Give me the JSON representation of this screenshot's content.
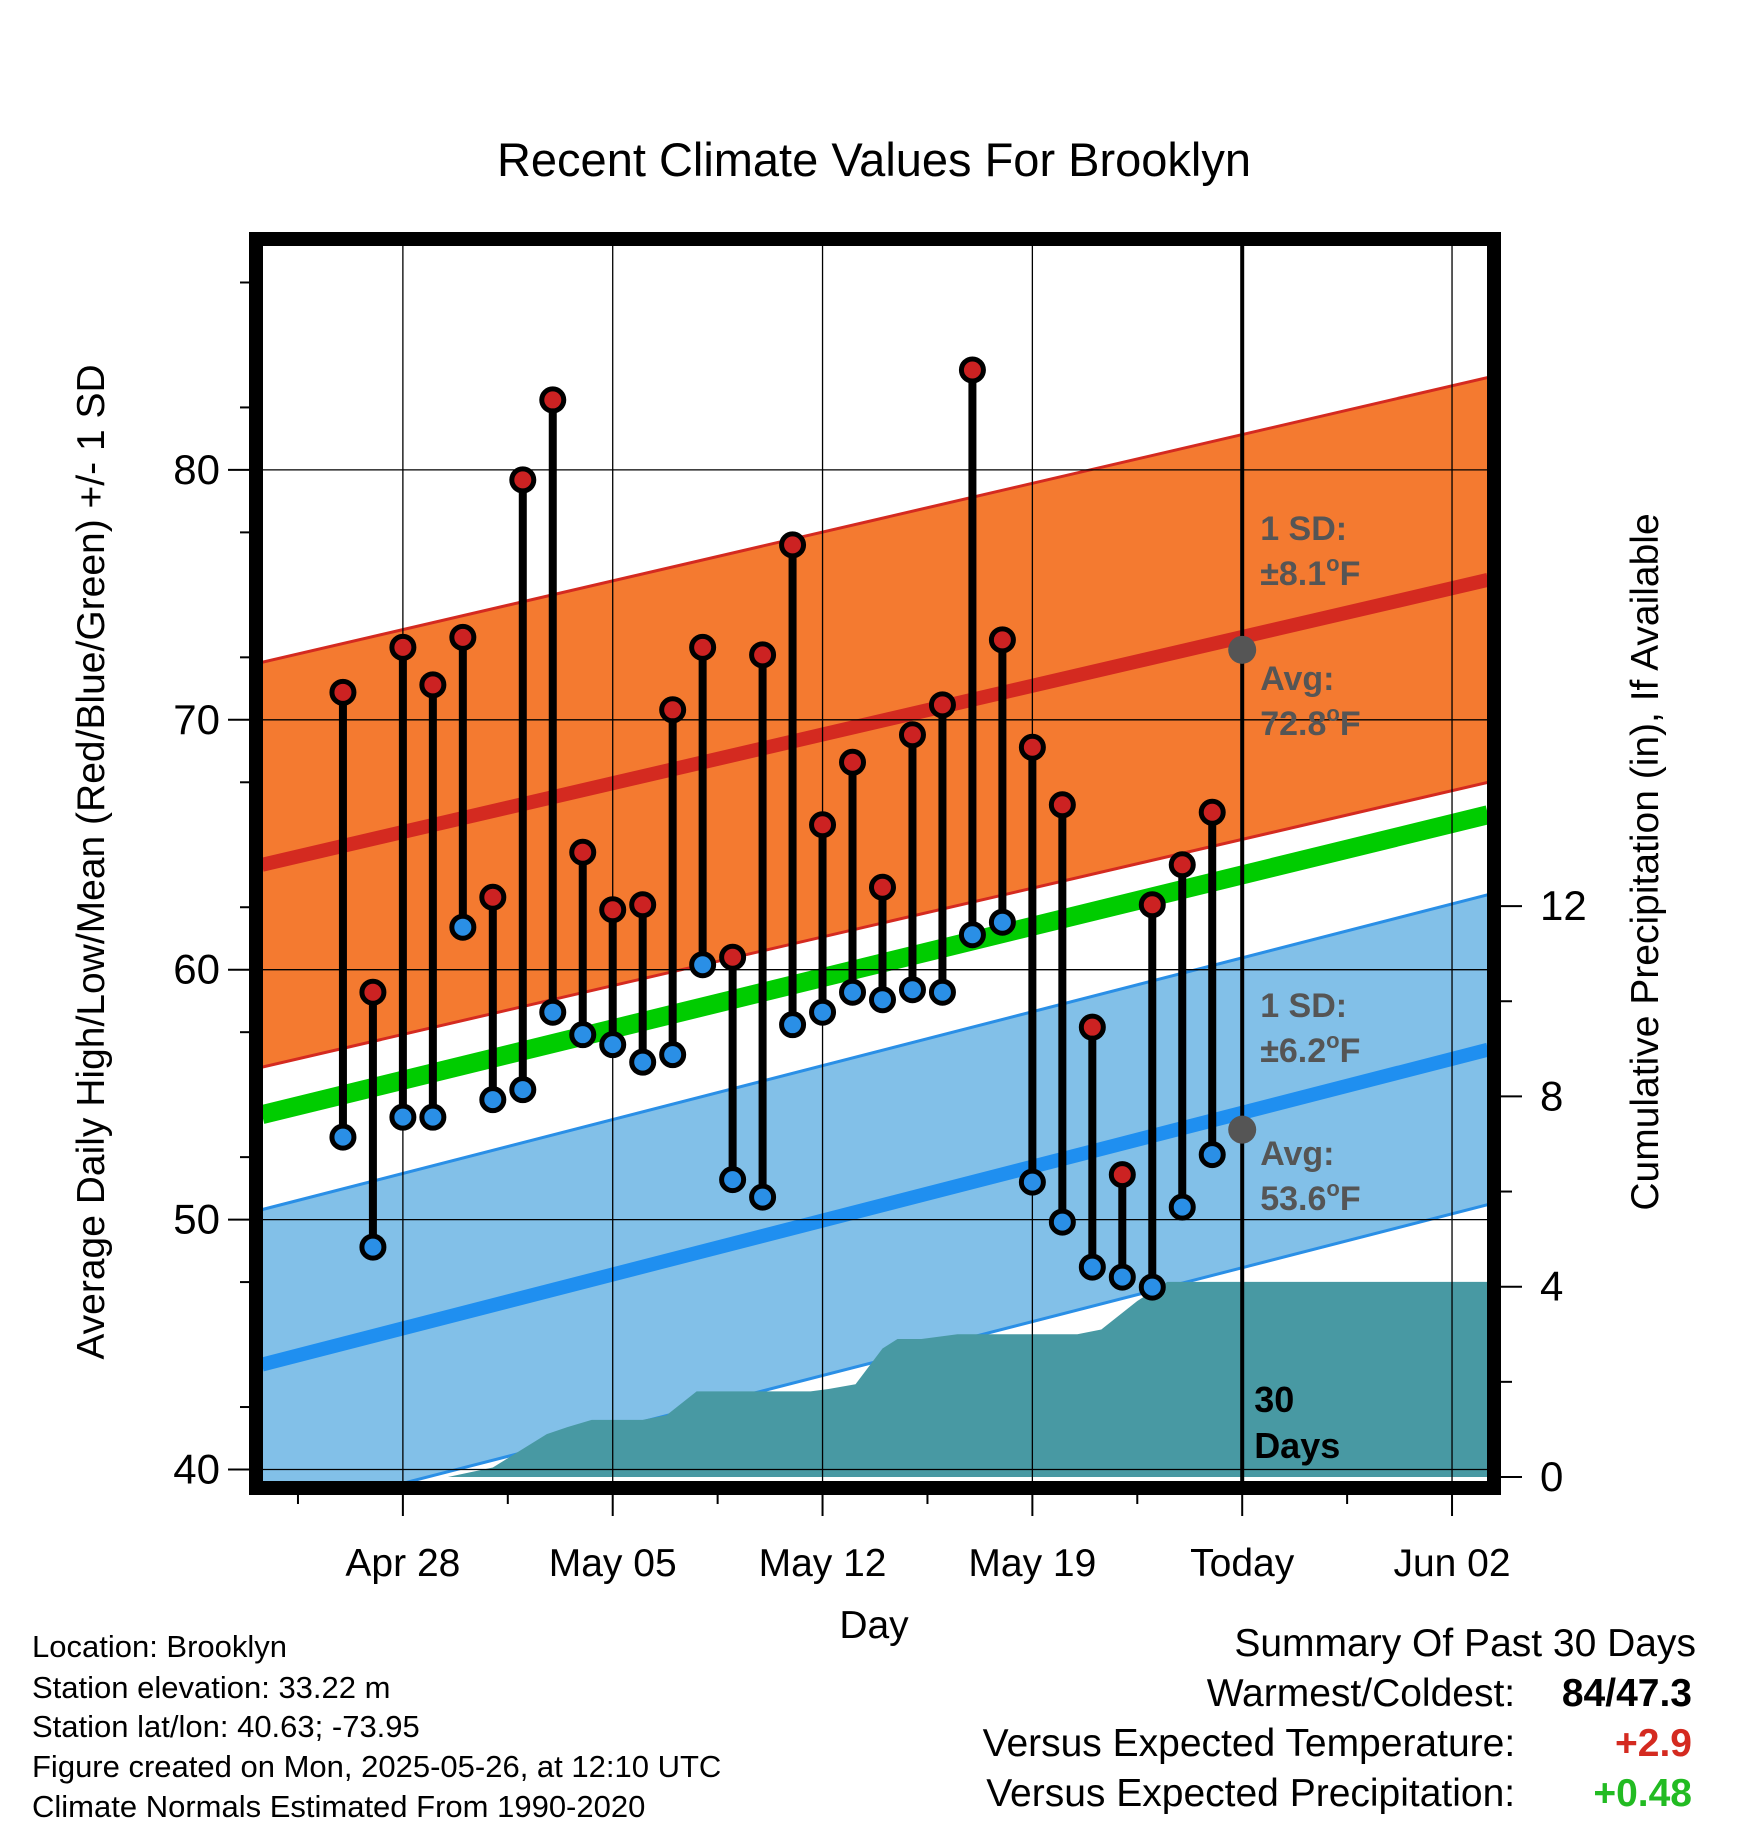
{
  "chart_data": {
    "type": "line",
    "title": "Recent Climate Values For Brooklyn",
    "xlabel": "Day",
    "ylabel": "Average Daily High/Low/Mean (Red/Blue/Green) +/- 1 SD",
    "y2label": "Cumulative Precipitation (in), If Available",
    "ylim": [
      39.5,
      89
    ],
    "y2lim": [
      0,
      26
    ],
    "yticks": [
      40,
      50,
      60,
      70,
      80
    ],
    "y2ticks": [
      0,
      4,
      8,
      12
    ],
    "xlim": [
      -4.7,
      36.2
    ],
    "xticks": [
      {
        "day": 0,
        "label": "Apr 28"
      },
      {
        "day": 7,
        "label": "May 05"
      },
      {
        "day": 14,
        "label": "May 12"
      },
      {
        "day": 21,
        "label": "May 19"
      },
      {
        "day": 28,
        "label": "Today"
      },
      {
        "day": 35,
        "label": "Jun 02"
      }
    ],
    "grid": true,
    "days": [
      "Apr 26",
      "Apr 27",
      "Apr 28",
      "Apr 29",
      "Apr 30",
      "May 01",
      "May 02",
      "May 03",
      "May 04",
      "May 05",
      "May 06",
      "May 07",
      "May 08",
      "May 09",
      "May 10",
      "May 11",
      "May 12",
      "May 13",
      "May 14",
      "May 15",
      "May 16",
      "May 17",
      "May 18",
      "May 19",
      "May 20",
      "May 21",
      "May 22",
      "May 23",
      "May 24",
      "May 25"
    ],
    "series": [
      {
        "name": "High",
        "color": "#cc2222",
        "values": [
          71.1,
          59.1,
          72.9,
          71.4,
          73.3,
          62.9,
          79.6,
          82.8,
          64.7,
          62.4,
          62.6,
          70.4,
          72.9,
          60.5,
          72.6,
          77.0,
          65.8,
          68.3,
          63.3,
          69.4,
          70.6,
          84.0,
          73.2,
          68.9,
          66.6,
          57.7,
          51.8,
          62.6,
          64.2,
          66.3
        ]
      },
      {
        "name": "Low",
        "color": "#2a8fe6",
        "values": [
          53.3,
          48.9,
          54.1,
          54.1,
          61.7,
          54.8,
          55.2,
          58.3,
          57.4,
          57.0,
          56.3,
          56.6,
          60.2,
          51.6,
          50.9,
          57.8,
          58.3,
          59.1,
          58.8,
          59.2,
          59.1,
          61.4,
          61.9,
          51.5,
          49.9,
          48.1,
          47.7,
          47.3,
          50.5,
          52.6
        ]
      }
    ],
    "normals": {
      "start_day": -4.7,
      "end_day": 36.2,
      "high_avg": [
        64.2,
        75.6
      ],
      "high_sd": 8.1,
      "low_avg": [
        44.2,
        56.8
      ],
      "low_sd": 6.2,
      "mean_avg": [
        54.2,
        66.2
      ]
    },
    "precip": {
      "name": "Cumulative Precipitation",
      "color": "#4899a3",
      "points": [
        [
          -4.7,
          0
        ],
        [
          1.5,
          0
        ],
        [
          3.0,
          0.2
        ],
        [
          4.8,
          0.9
        ],
        [
          5.5,
          1.05
        ],
        [
          6.3,
          1.2
        ],
        [
          8.0,
          1.2
        ],
        [
          8.8,
          1.3
        ],
        [
          9.8,
          1.8
        ],
        [
          10.5,
          1.8
        ],
        [
          12.0,
          1.8
        ],
        [
          13.6,
          1.8
        ],
        [
          14.2,
          1.85
        ],
        [
          15.1,
          1.95
        ],
        [
          16.0,
          2.7
        ],
        [
          16.5,
          2.9
        ],
        [
          17.3,
          2.9
        ],
        [
          18.5,
          3.0
        ],
        [
          20.0,
          3.0
        ],
        [
          21.0,
          3.0
        ],
        [
          21.8,
          3.0
        ],
        [
          22.5,
          3.0
        ],
        [
          23.3,
          3.1
        ],
        [
          24.5,
          3.7
        ],
        [
          25.5,
          4.1
        ],
        [
          26.5,
          4.1
        ],
        [
          27.5,
          4.1
        ],
        [
          28.0,
          4.1
        ],
        [
          36.2,
          4.1
        ]
      ]
    },
    "annotations": {
      "high_sd_line1": "1 SD:",
      "high_sd_line2": "±8.1",
      "high_avg_line1": "Avg:",
      "high_avg_line2": "72.8",
      "low_sd_line1": "1 SD:",
      "low_sd_line2": "±6.2",
      "low_avg_line1": "Avg:",
      "low_avg_line2": "53.6",
      "deg": "o",
      "unit": "F",
      "today_high": 72.8,
      "today_low": 53.6,
      "days_line1": "30",
      "days_line2": "Days"
    },
    "colors": {
      "high_band": "#f47a30",
      "high_edge": "#d42a20",
      "high_line": "#d42a20",
      "low_band": "#82c0e8",
      "low_edge": "#2a8fe6",
      "low_line": "#1f8ff0",
      "mean_line": "#00cc00",
      "high_marker": "#cc2222",
      "low_marker": "#2a8fe6",
      "annotation_text": "#555555",
      "marker_today": "#555555"
    }
  },
  "info": {
    "location": "Location: Brooklyn",
    "elevation": "Station elevation: 33.22 m",
    "latlon": "Station lat/lon: 40.63; -73.95",
    "created": "Figure created on Mon, 2025-05-26, at 12:10 UTC",
    "normals": "Climate Normals Estimated From 1990-2020"
  },
  "summary": {
    "title": "Summary Of Past 30 Days",
    "warmest_coldest_label": "Warmest/Coldest:",
    "warmest": "84",
    "sep": "/",
    "coldest": "47.3",
    "temp_label": "Versus Expected Temperature:",
    "temp_value": "+2.9",
    "temp_color": "#d42a20",
    "precip_label": "Versus Expected Precipitation:",
    "precip_value": "+0.48",
    "precip_color": "#22bb22"
  }
}
